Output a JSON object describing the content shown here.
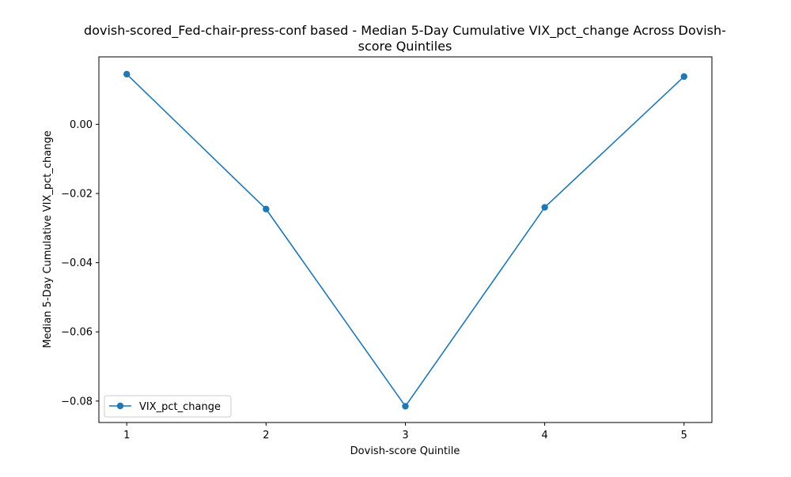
{
  "chart_data": {
    "type": "line",
    "title_line1": "dovish-scored_Fed-chair-press-conf based - Median 5-Day Cumulative VIX_pct_change Across Dovish-",
    "title_line2": "score Quintiles",
    "xlabel": "Dovish-score Quintile",
    "ylabel": "Median 5-Day Cumulative VIX_pct_change",
    "x": [
      1,
      2,
      3,
      4,
      5
    ],
    "x_tick_labels": [
      "1",
      "2",
      "3",
      "4",
      "5"
    ],
    "xlim": [
      0.8,
      5.2
    ],
    "ylim": [
      -0.0862,
      0.0195
    ],
    "y_ticks": [
      0.0,
      -0.02,
      -0.04,
      -0.06,
      -0.08
    ],
    "y_tick_labels": [
      "0.00",
      "−0.02",
      "−0.04",
      "−0.06",
      "−0.08"
    ],
    "series": [
      {
        "name": "VIX_pct_change",
        "color": "#1f77b4",
        "marker": "circle",
        "values": [
          0.0145,
          -0.0245,
          -0.0815,
          -0.024,
          0.0138
        ]
      }
    ],
    "grid": false,
    "legend_position": "lower-left"
  }
}
